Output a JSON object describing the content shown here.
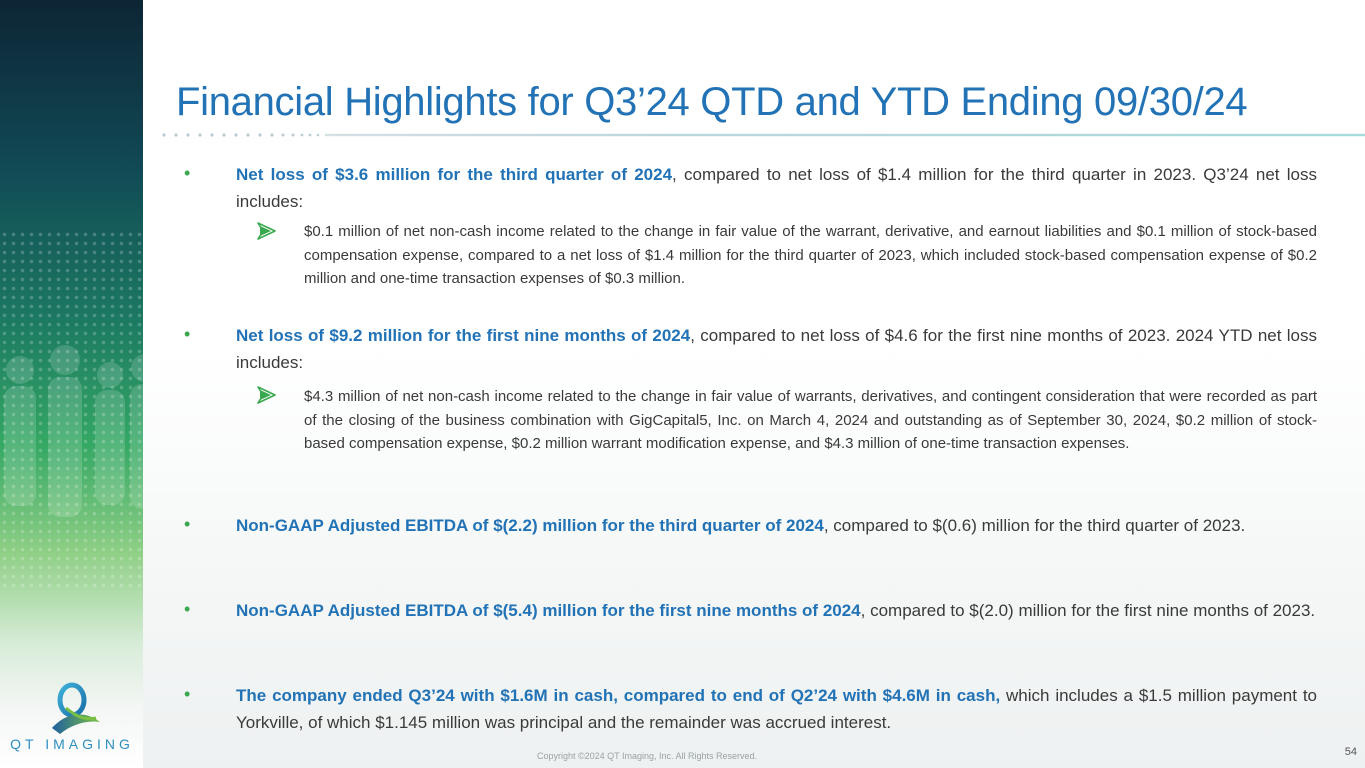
{
  "slide": {
    "title": "Financial Highlights for Q3’24 QTD and YTD Ending 09/30/24",
    "bullets": [
      {
        "bold": "Net loss of $3.6 million for the third quarter of 2024",
        "rest": ", compared to net loss of $1.4 million for the third quarter in 2023. Q3’24 net loss includes:",
        "sub": "$0.1 million of net non-cash income related to the change in fair value of the warrant, derivative, and earnout liabilities and $0.1 million of stock-based compensation expense, compared to a net loss of $1.4 million for the third quarter of 2023, which included stock-based compensation expense of $0.2 million and one-time transaction expenses of $0.3 million."
      },
      {
        "bold": "Net loss of $9.2 million for the first nine months of 2024",
        "rest": ", compared to net loss of $4.6 for the first nine months of 2023. 2024 YTD net loss includes:",
        "sub": "$4.3 million of net non-cash income related to the change in fair value of warrants, derivatives, and contingent consideration that were recorded as part of the closing of the business combination with GigCapital5, Inc. on March 4, 2024 and outstanding as of September 30, 2024, $0.2 million of stock-based compensation expense, $0.2 million warrant modification expense, and $4.3 million of one-time transaction expenses."
      },
      {
        "bold": "Non-GAAP Adjusted EBITDA of $(2.2) million for the third quarter of 2024",
        "rest": ", compared to $(0.6) million for the third quarter of 2023."
      },
      {
        "bold": "Non-GAAP Adjusted EBITDA of $(5.4) million for the first nine months of 2024",
        "rest": ", compared to $(2.0) million for the first nine months of 2023."
      },
      {
        "bold": "The company ended Q3’24 with $1.6M in cash, compared to end of Q2’24 with $4.6M in cash,",
        "rest": " which includes a $1.5 million payment to Yorkville, of which $1.145 million was principal and the remainder was accrued interest."
      }
    ],
    "bullet_glyph": "•",
    "logo_text": "QT IMAGING",
    "footer": "Copyright ©2024 QT Imaging, Inc. All Rights Reserved.",
    "page_number": "54"
  },
  "colors": {
    "title": "#2272b6",
    "bold_text": "#2272b6",
    "bullet": "#3aa84e",
    "body_text": "#3a3a3a"
  }
}
